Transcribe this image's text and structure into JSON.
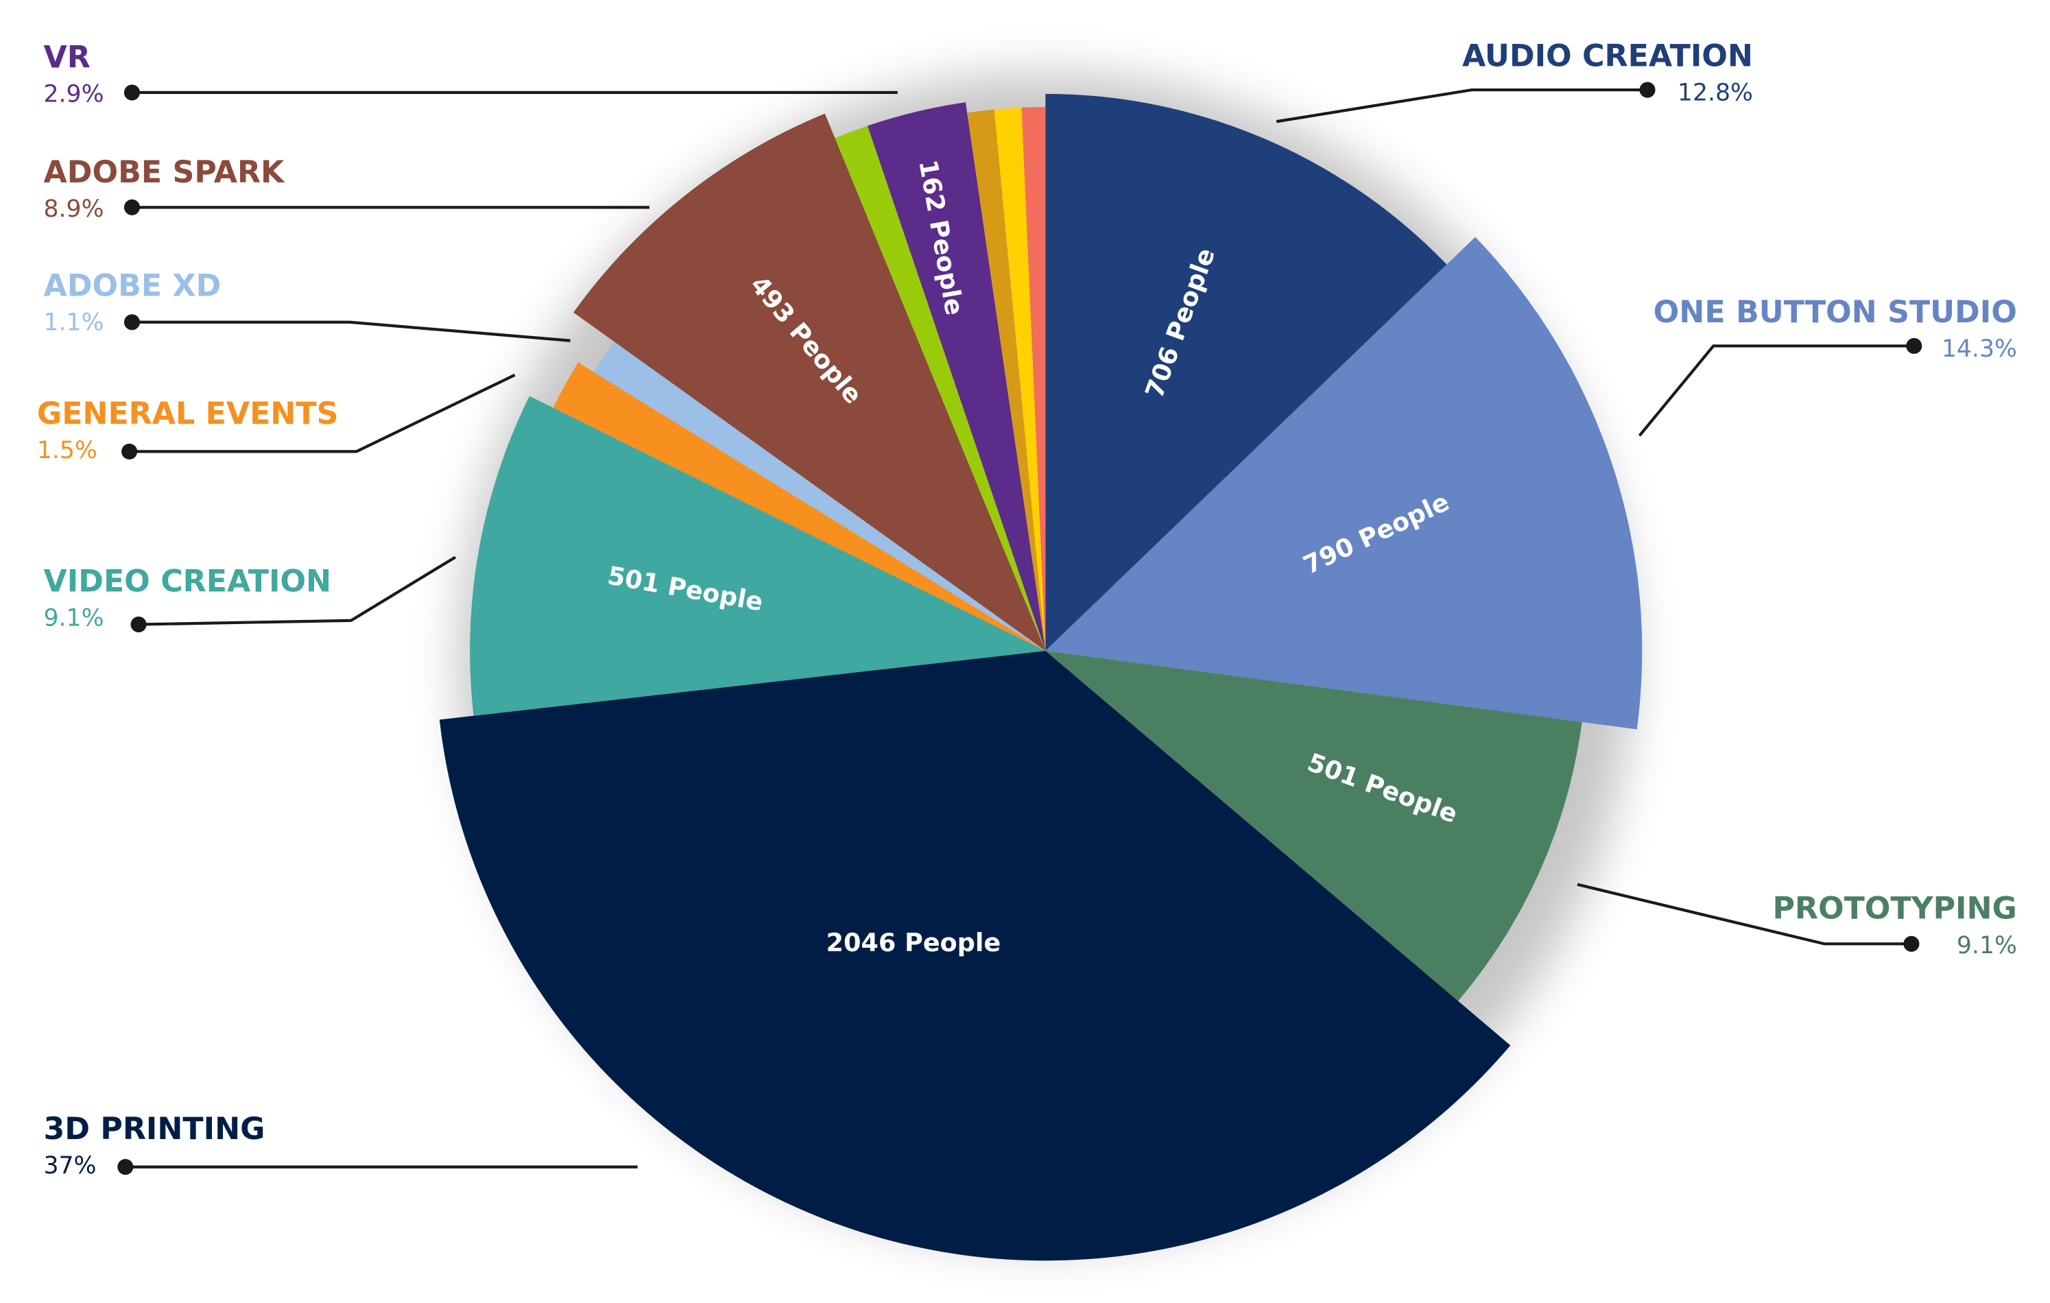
{
  "chart_data": {
    "type": "pie",
    "categories": [
      "AUDIO CREATION",
      "ONE BUTTON STUDIO",
      "PROTOTYPING",
      "3D PRINTING",
      "VIDEO CREATION",
      "GENERAL EVENTS",
      "ADOBE XD",
      "ADOBE SPARK",
      null,
      "VR",
      null,
      null,
      null
    ],
    "values": [
      12.8,
      14.3,
      9.1,
      37,
      9.1,
      1.5,
      1.1,
      8.9,
      1.0,
      2.9,
      0.8,
      0.8,
      0.7
    ],
    "value_labels": [
      "12.8%",
      "14.3%",
      "9.1%",
      "37%",
      "9.1%",
      "1.5%",
      "1.1%",
      "8.9%",
      null,
      "2.9%",
      null,
      null,
      null
    ],
    "people_labels": [
      "706 People",
      "790 People",
      "501 People",
      "2046 People",
      "501 People",
      null,
      null,
      "493 People",
      null,
      "162 People",
      null,
      null,
      null
    ],
    "colors": [
      "#1f3f7a",
      "#6585c4",
      "#4a8061",
      "#001e45",
      "#3fa8a0",
      "#f7901e",
      "#9bbfe6",
      "#8b4a3c",
      "#9acb0a",
      "#5b2c8a",
      "#d79a17",
      "#ffd100",
      "#f26d5b"
    ]
  }
}
